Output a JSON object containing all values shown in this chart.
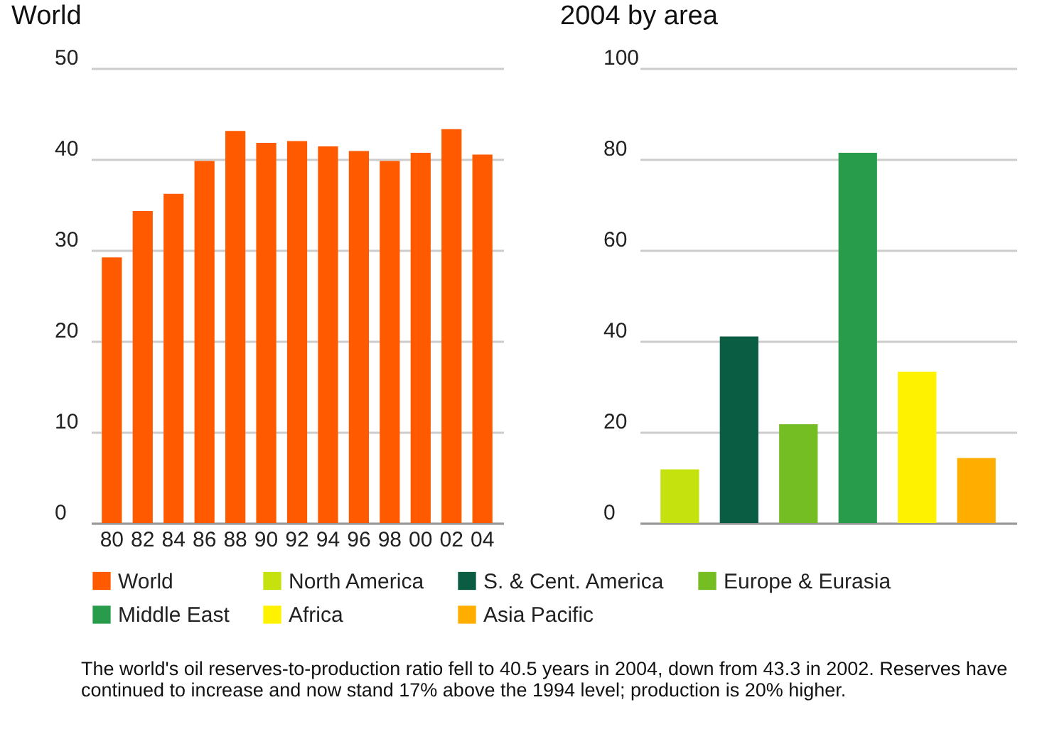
{
  "chart_data": [
    {
      "type": "bar",
      "title": "World",
      "categories": [
        "80",
        "82",
        "84",
        "86",
        "88",
        "90",
        "92",
        "94",
        "96",
        "98",
        "00",
        "02",
        "04"
      ],
      "series": [
        {
          "name": "World",
          "color": "#ff5a00",
          "values": [
            29.2,
            34.3,
            36.2,
            39.8,
            43.1,
            41.8,
            42.0,
            41.4,
            40.9,
            39.8,
            40.7,
            43.3,
            40.5
          ]
        }
      ],
      "ylim": [
        0,
        50
      ],
      "yticks": [
        0,
        10,
        20,
        30,
        40,
        50
      ],
      "grid": "y",
      "legend": "bottom",
      "annotations": [
        "The world's oil reserves-to-production ratio fell to 40.5 years in 2004, down from 43.3 in 2002. Reserves have continued to increase and now stand 17% above the 1994 level; production is 20% higher."
      ]
    },
    {
      "type": "bar",
      "title": "2004 by area",
      "categories": [
        null,
        null,
        null,
        null,
        null,
        null
      ],
      "series": [
        {
          "name": "North America",
          "color": "#c5e20f",
          "values": [
            11.8,
            null,
            null,
            null,
            null,
            null
          ]
        },
        {
          "name": "S. & Cent. America",
          "color": "#0a5c42",
          "values": [
            null,
            41.0,
            null,
            null,
            null,
            null
          ]
        },
        {
          "name": "Europe & Eurasia",
          "color": "#74bd22",
          "values": [
            null,
            null,
            21.7,
            null,
            null,
            null
          ]
        },
        {
          "name": "Middle East",
          "color": "#289c4a",
          "values": [
            null,
            null,
            null,
            81.4,
            null,
            null
          ]
        },
        {
          "name": "Africa",
          "color": "#fff200",
          "values": [
            null,
            null,
            null,
            null,
            33.3,
            null
          ]
        },
        {
          "name": "Asia Pacific",
          "color": "#ffae00",
          "values": [
            null,
            null,
            null,
            null,
            null,
            14.3
          ]
        }
      ],
      "ylim": [
        0,
        100
      ],
      "yticks": [
        0,
        20,
        40,
        60,
        80,
        100
      ],
      "grid": "y",
      "legend": "bottom",
      "tick_labels": "y"
    }
  ]
}
